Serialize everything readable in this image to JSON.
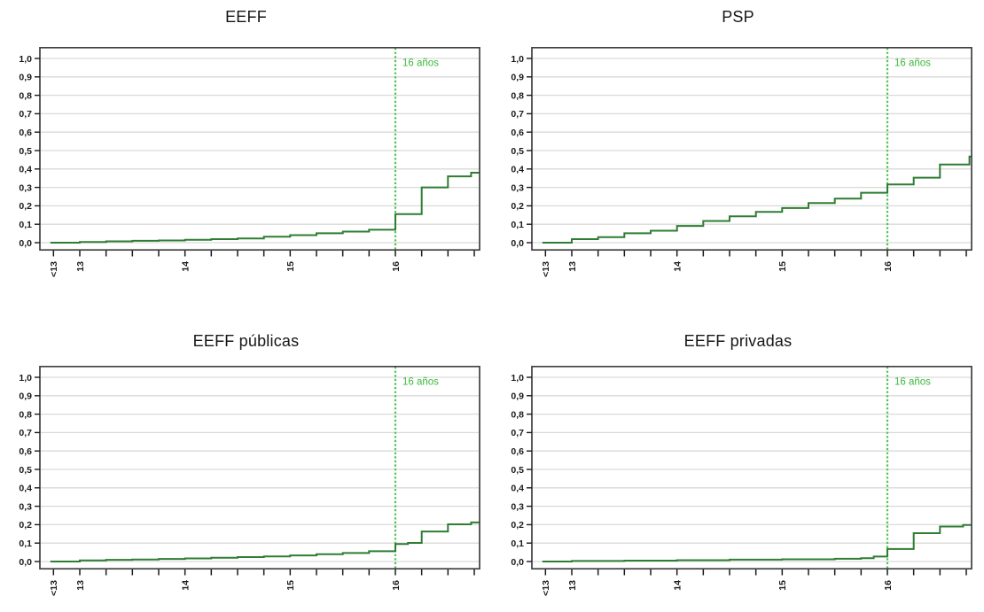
{
  "figure": {
    "background": "#ffffff"
  },
  "colors": {
    "curve": "#2e7d32",
    "marker_line": "#55c155",
    "marker_label": "#3cb83c",
    "grid": "#d9d9d9",
    "plot_border": "#404040",
    "tick": "#1a1a1a",
    "tick_text": "#1a1a1a",
    "title_text": "#161616"
  },
  "axis": {
    "x_range": [
      12.62,
      16.8
    ],
    "x_ticks": [
      12.75,
      13,
      13.25,
      13.5,
      13.75,
      14,
      14.25,
      14.5,
      14.75,
      15,
      15.25,
      15.5,
      15.75,
      16,
      16.25,
      16.5,
      16.75
    ],
    "x_tick_labels": [
      "<13",
      "13",
      "",
      "",
      "",
      "14",
      "",
      "",
      "",
      "15",
      "",
      "",
      "",
      "16",
      "",
      "",
      ""
    ],
    "y_range": [
      0,
      1
    ],
    "y_ticks": [
      0,
      0.1,
      0.2,
      0.3,
      0.4,
      0.5,
      0.6,
      0.7,
      0.8,
      0.9,
      1
    ],
    "y_tick_labels": [
      "0,0",
      "0,1",
      "0,2",
      "0,3",
      "0,4",
      "0,5",
      "0,6",
      "0,7",
      "0,8",
      "0,9",
      "1,0"
    ],
    "grid": "horizontal"
  },
  "annotation": {
    "label": "16 años",
    "x": 16
  },
  "chart_data": [
    {
      "type": "line",
      "step": true,
      "title": "EEFF",
      "xlabel": "",
      "ylabel": "",
      "points": [
        [
          12.72,
          0
        ],
        [
          13,
          0.004
        ],
        [
          13.25,
          0.007
        ],
        [
          13.5,
          0.01
        ],
        [
          13.75,
          0.012
        ],
        [
          14,
          0.016
        ],
        [
          14.25,
          0.019
        ],
        [
          14.5,
          0.023
        ],
        [
          14.75,
          0.032
        ],
        [
          15,
          0.041
        ],
        [
          15.25,
          0.051
        ],
        [
          15.5,
          0.06
        ],
        [
          15.75,
          0.07
        ],
        [
          16,
          0.155
        ],
        [
          16.25,
          0.3
        ],
        [
          16.5,
          0.36
        ],
        [
          16.72,
          0.38
        ]
      ]
    },
    {
      "type": "line",
      "step": true,
      "title": "PSP",
      "xlabel": "",
      "ylabel": "",
      "points": [
        [
          12.72,
          0
        ],
        [
          13,
          0.019
        ],
        [
          13.25,
          0.03
        ],
        [
          13.5,
          0.051
        ],
        [
          13.75,
          0.065
        ],
        [
          14,
          0.091
        ],
        [
          14.25,
          0.118
        ],
        [
          14.5,
          0.143
        ],
        [
          14.75,
          0.167
        ],
        [
          15,
          0.188
        ],
        [
          15.25,
          0.215
        ],
        [
          15.5,
          0.239
        ],
        [
          15.75,
          0.271
        ],
        [
          16,
          0.316
        ],
        [
          16.25,
          0.353
        ],
        [
          16.5,
          0.424
        ],
        [
          16.78,
          0.468
        ]
      ]
    },
    {
      "type": "line",
      "step": true,
      "title": "EEFF públicas",
      "xlabel": "",
      "ylabel": "",
      "points": [
        [
          12.72,
          0
        ],
        [
          13,
          0.006
        ],
        [
          13.25,
          0.009
        ],
        [
          13.5,
          0.011
        ],
        [
          13.75,
          0.014
        ],
        [
          14,
          0.017
        ],
        [
          14.25,
          0.02
        ],
        [
          14.5,
          0.024
        ],
        [
          14.75,
          0.028
        ],
        [
          15,
          0.033
        ],
        [
          15.25,
          0.04
        ],
        [
          15.5,
          0.046
        ],
        [
          15.75,
          0.056
        ],
        [
          16,
          0.095
        ],
        [
          16.12,
          0.101
        ],
        [
          16.25,
          0.163
        ],
        [
          16.5,
          0.202
        ],
        [
          16.72,
          0.212
        ]
      ]
    },
    {
      "type": "line",
      "step": true,
      "title": "EEFF privadas",
      "xlabel": "",
      "ylabel": "",
      "points": [
        [
          12.72,
          0
        ],
        [
          13,
          0.003
        ],
        [
          13.5,
          0.005
        ],
        [
          14,
          0.007
        ],
        [
          14.5,
          0.01
        ],
        [
          15,
          0.012
        ],
        [
          15.5,
          0.015
        ],
        [
          15.75,
          0.018
        ],
        [
          15.87,
          0.027
        ],
        [
          16,
          0.068
        ],
        [
          16.25,
          0.154
        ],
        [
          16.5,
          0.19
        ],
        [
          16.72,
          0.198
        ]
      ]
    }
  ]
}
